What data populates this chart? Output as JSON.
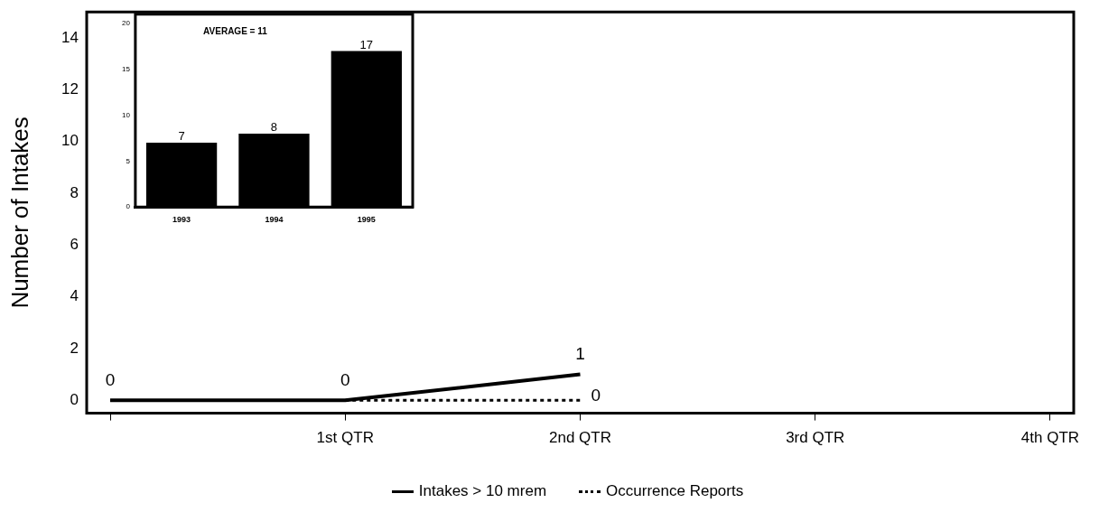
{
  "chart_data": [
    {
      "type": "line",
      "ylabel": "Number of Intakes",
      "categories": [
        null,
        "1st QTR",
        "2nd QTR",
        "3rd QTR",
        "4th QTR"
      ],
      "series": [
        {
          "name": "Intakes > 10 mrem",
          "color": "#000000",
          "line_style": "solid",
          "values": [
            0,
            0,
            1,
            null,
            null
          ],
          "value_labels": [
            "0",
            "0",
            "1",
            null,
            null
          ]
        },
        {
          "name": "Occurrence Reports",
          "color": "#000000",
          "line_style": "dotted",
          "values": [
            null,
            0,
            0,
            null,
            null
          ],
          "value_labels": [
            null,
            null,
            "0",
            null,
            null
          ]
        }
      ],
      "ylim": [
        -0.5,
        15
      ],
      "yticks": [
        0,
        2,
        4,
        6,
        8,
        10,
        12,
        14
      ],
      "grid": false,
      "legend": "bottom",
      "marker": "none"
    },
    {
      "type": "bar",
      "categories": [
        "1993",
        "1994",
        "1995"
      ],
      "values": [
        7,
        8,
        17
      ],
      "color": "#000000",
      "ylim": [
        0,
        21
      ],
      "yticks": [
        0,
        5,
        10,
        15,
        20
      ],
      "annotations": [
        "AVERAGE = 11"
      ],
      "data_labels": true,
      "grid": false
    }
  ]
}
